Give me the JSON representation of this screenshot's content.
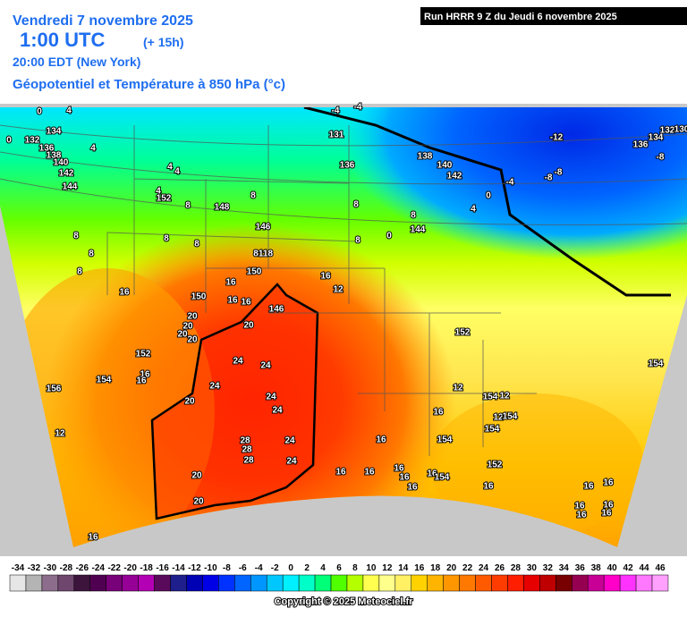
{
  "header": {
    "date": "Vendredi 7 novembre 2025",
    "time_utc": "1:00 UTC",
    "lead": "(+ 15h)",
    "time_local": "20:00 EDT (New York)",
    "field": "Géopotentiel et Température à 850 hPa (°c)",
    "run": "Run HRRR 9 Z du Jeudi 6 novembre 2025"
  },
  "map": {
    "labels": [
      0,
      4,
      -4,
      -4,
      0,
      132,
      134,
      136,
      138,
      140,
      142,
      144,
      4,
      4,
      4,
      4,
      152,
      8,
      148,
      8,
      8,
      8,
      8,
      8,
      8,
      146,
      8,
      118,
      150,
      131,
      136,
      8,
      8,
      0,
      8,
      144,
      138,
      140,
      142,
      0,
      4,
      -4,
      -12,
      -8,
      -8,
      136,
      134,
      -8,
      132,
      130,
      16,
      12,
      16,
      150,
      16,
      16,
      16,
      20,
      146,
      20,
      20,
      20,
      20,
      152,
      154,
      16,
      16,
      156,
      24,
      24,
      24,
      24,
      24,
      20,
      28,
      28,
      24,
      28,
      24,
      20,
      20,
      16,
      12,
      152,
      12,
      154,
      12,
      16,
      12,
      154,
      154,
      16,
      154,
      16,
      16,
      16,
      16,
      16,
      16,
      154,
      152,
      16,
      16,
      16,
      16,
      16,
      16,
      16,
      154
    ]
  },
  "legend": {
    "labels": [
      -34,
      -32,
      -30,
      -28,
      -26,
      -24,
      -22,
      -20,
      -18,
      -16,
      -14,
      -12,
      -10,
      -8,
      -6,
      -4,
      -2,
      0,
      2,
      4,
      6,
      8,
      10,
      12,
      14,
      16,
      18,
      20,
      22,
      24,
      26,
      28,
      30,
      32,
      34,
      36,
      38,
      40,
      42,
      44,
      46
    ],
    "colors": [
      "#e6e6e6",
      "#b4b4b4",
      "#8c6e8c",
      "#6e466e",
      "#3c143c",
      "#500050",
      "#780078",
      "#960096",
      "#b400b4",
      "#5a0a5a",
      "#1e1e8c",
      "#0000b4",
      "#0000e6",
      "#0032ff",
      "#0064ff",
      "#0096ff",
      "#00c8ff",
      "#00f0ff",
      "#00ffc8",
      "#00ff78",
      "#50ff00",
      "#b4ff00",
      "#ffff50",
      "#ffff8c",
      "#fff064",
      "#ffd200",
      "#ffb400",
      "#ff9600",
      "#ff7800",
      "#ff5a00",
      "#ff3c00",
      "#ff1e00",
      "#e60000",
      "#be0000",
      "#780000",
      "#960050",
      "#c80096",
      "#ff00c8",
      "#ff32ff",
      "#ff78ff",
      "#ffa0ff"
    ]
  },
  "footer": {
    "copyright": "Copyright © 2025 Meteociel.fr"
  }
}
